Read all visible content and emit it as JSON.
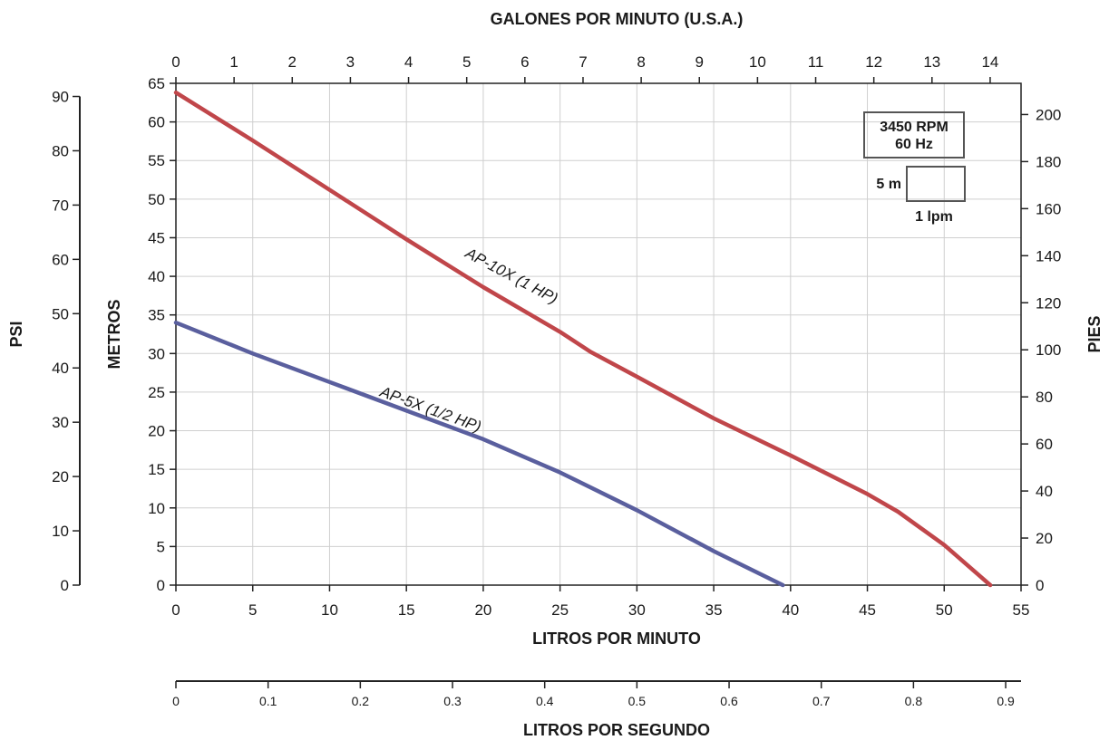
{
  "chart_data": {
    "type": "line",
    "top_axis": {
      "title": "GALONES POR MINUTO (U.S.A.)",
      "ticks": [
        0,
        1,
        2,
        3,
        4,
        5,
        6,
        7,
        8,
        9,
        10,
        11,
        12,
        13,
        14
      ],
      "unit_factor_lpm": 3.785
    },
    "x_axis": {
      "title": "LITROS POR MINUTO",
      "range": [
        0,
        55
      ],
      "ticks": [
        0,
        5,
        10,
        15,
        20,
        25,
        30,
        35,
        40,
        45,
        50,
        55
      ]
    },
    "bottom_axis": {
      "title": "LITROS POR SEGUNDO",
      "ticks": [
        "0",
        "0.1",
        "0.2",
        "0.3",
        "0.4",
        "0.5",
        "0.6",
        "0.7",
        "0.8",
        "0.9"
      ]
    },
    "y_axis": {
      "title": "METROS",
      "range": [
        0,
        65
      ],
      "ticks": [
        0,
        5,
        10,
        15,
        20,
        25,
        30,
        35,
        40,
        45,
        50,
        55,
        60,
        65
      ]
    },
    "right_axis": {
      "title": "PIES",
      "ticks": [
        0,
        20,
        40,
        60,
        80,
        100,
        120,
        140,
        160,
        180,
        200
      ],
      "unit_factor_m": 0.3048
    },
    "left_axis": {
      "title": "PSI",
      "ticks": [
        0,
        10,
        20,
        30,
        40,
        50,
        60,
        70,
        80,
        90
      ],
      "unit_factor_m": 0.7033
    },
    "grid": true,
    "series": [
      {
        "name": "AP-10X (1 HP)",
        "color": "#c0464a",
        "points": [
          [
            0,
            63.8
          ],
          [
            5,
            57.6
          ],
          [
            10,
            51.2
          ],
          [
            15,
            44.8
          ],
          [
            20,
            38.6
          ],
          [
            25,
            32.8
          ],
          [
            27,
            30.2
          ],
          [
            30,
            27.0
          ],
          [
            35,
            21.6
          ],
          [
            40,
            16.8
          ],
          [
            45,
            11.8
          ],
          [
            47,
            9.5
          ],
          [
            50,
            5.2
          ],
          [
            53,
            0
          ]
        ]
      },
      {
        "name": "AP-5X (1/2 HP)",
        "color": "#5a5f9e",
        "points": [
          [
            0,
            34.0
          ],
          [
            5,
            30.0
          ],
          [
            10,
            26.3
          ],
          [
            15,
            22.6
          ],
          [
            20,
            18.9
          ],
          [
            25,
            14.6
          ],
          [
            30,
            9.7
          ],
          [
            35,
            4.4
          ],
          [
            39.5,
            0
          ]
        ]
      }
    ],
    "annotations": {
      "rpm": "3450 RPM",
      "hz": "60 Hz",
      "scale_m": "5 m",
      "scale_lpm": "1 lpm"
    }
  }
}
